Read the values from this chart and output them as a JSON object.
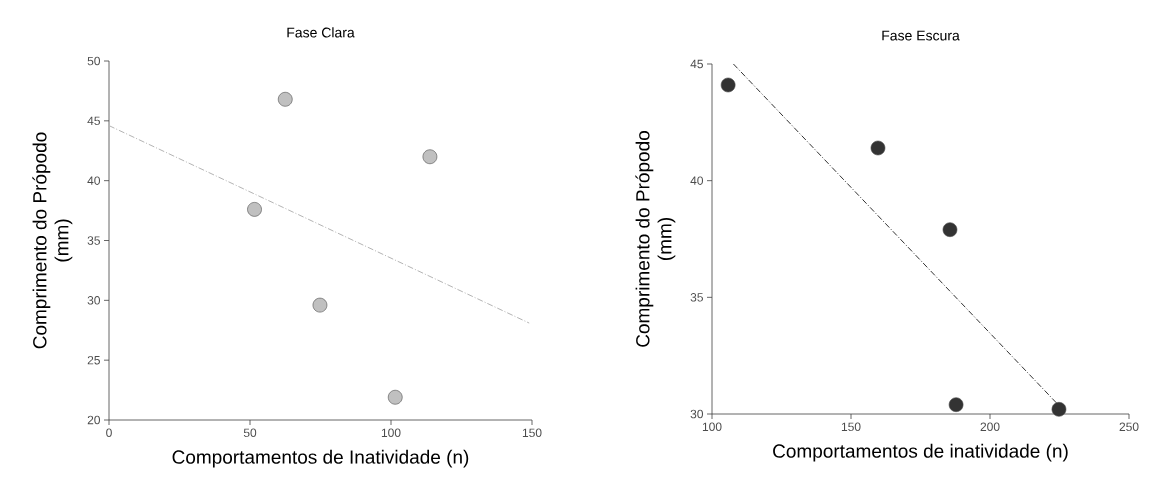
{
  "chart_data": [
    {
      "type": "scatter",
      "title": "Fase Clara",
      "xlabel": "Comportamentos de Inatividade (n)",
      "ylabel": "Comprimento do Própodo (mm)",
      "xlim": [
        0,
        150
      ],
      "ylim": [
        20,
        50
      ],
      "xticks": [
        0,
        50,
        100,
        150
      ],
      "yticks": [
        20,
        25,
        30,
        35,
        40,
        45,
        50
      ],
      "x": [
        51.6,
        62.5,
        74.8,
        101.5,
        113.8
      ],
      "series": [
        {
          "type": "scatter",
          "color": "#c0c0c0",
          "marker": "circle",
          "values": [
            37.6,
            46.8,
            29.6,
            21.9,
            42.0
          ]
        },
        {
          "type": "line",
          "color": "#b4b4b4",
          "line_style": "dashed",
          "x": [
            0,
            149
          ],
          "values": [
            44.6,
            28.1
          ]
        }
      ]
    },
    {
      "type": "scatter",
      "title": "Fase Escura",
      "xlabel": "Comportamentos de inatividade (n)",
      "ylabel": "Comprimento do Própodo (mm)",
      "xlim": [
        100,
        250
      ],
      "ylim": [
        30,
        45
      ],
      "xticks": [
        100,
        150,
        200,
        250
      ],
      "yticks": [
        30,
        35,
        40,
        45
      ],
      "x": [
        105.8,
        159.7,
        185.6,
        187.8,
        224.8
      ],
      "series": [
        {
          "type": "scatter",
          "color": "#333333",
          "marker": "circle",
          "values": [
            44.1,
            41.4,
            37.9,
            30.4,
            30.2
          ]
        },
        {
          "type": "line",
          "color": "#333333",
          "line_style": "dashed",
          "x": [
            107.7,
            224.5
          ],
          "values": [
            45.0,
            30.4
          ]
        }
      ]
    }
  ]
}
